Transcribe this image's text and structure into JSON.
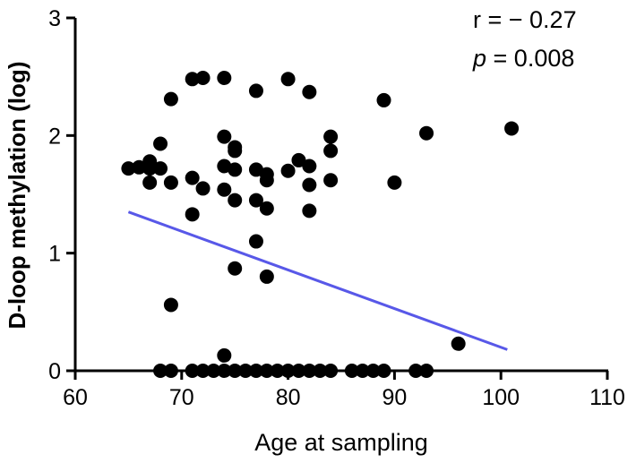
{
  "chart_data": {
    "type": "scatter",
    "xlabel": "Age at sampling",
    "ylabel": "D-loop methylation (log)",
    "xlim": [
      60,
      110
    ],
    "ylim": [
      0,
      3
    ],
    "xticks": [
      60,
      70,
      80,
      90,
      100,
      110
    ],
    "yticks": [
      0,
      1,
      2,
      3
    ],
    "annotations": {
      "r_text": "r = − 0.27",
      "p_symbol": "p",
      "p_rest": " = 0.008"
    },
    "colors": {
      "points": "#000000",
      "regression_line": "#5858e8",
      "axis": "#000000"
    },
    "regression_line": {
      "x": [
        65,
        100.6
      ],
      "y": [
        1.35,
        0.18
      ]
    },
    "points": [
      {
        "x": 65,
        "y": 1.72
      },
      {
        "x": 66,
        "y": 1.73
      },
      {
        "x": 67,
        "y": 1.78
      },
      {
        "x": 67,
        "y": 1.72
      },
      {
        "x": 67,
        "y": 1.6
      },
      {
        "x": 68,
        "y": 1.72
      },
      {
        "x": 68,
        "y": 1.93
      },
      {
        "x": 69,
        "y": 2.31
      },
      {
        "x": 69,
        "y": 1.6
      },
      {
        "x": 69,
        "y": 0.56
      },
      {
        "x": 71,
        "y": 2.48
      },
      {
        "x": 72,
        "y": 2.49
      },
      {
        "x": 74,
        "y": 2.49
      },
      {
        "x": 71,
        "y": 1.64
      },
      {
        "x": 72,
        "y": 1.55
      },
      {
        "x": 71,
        "y": 1.33
      },
      {
        "x": 74,
        "y": 1.99
      },
      {
        "x": 74,
        "y": 1.74
      },
      {
        "x": 74,
        "y": 1.54
      },
      {
        "x": 75,
        "y": 1.9
      },
      {
        "x": 75,
        "y": 1.87
      },
      {
        "x": 75,
        "y": 1.71
      },
      {
        "x": 75,
        "y": 1.45
      },
      {
        "x": 75,
        "y": 0.87
      },
      {
        "x": 77,
        "y": 2.38
      },
      {
        "x": 77,
        "y": 1.71
      },
      {
        "x": 77,
        "y": 1.45
      },
      {
        "x": 77,
        "y": 1.1
      },
      {
        "x": 78,
        "y": 1.67
      },
      {
        "x": 78,
        "y": 1.62
      },
      {
        "x": 78,
        "y": 1.38
      },
      {
        "x": 78,
        "y": 0.8
      },
      {
        "x": 80,
        "y": 2.48
      },
      {
        "x": 80,
        "y": 1.7
      },
      {
        "x": 81,
        "y": 1.79
      },
      {
        "x": 82,
        "y": 2.37
      },
      {
        "x": 82,
        "y": 1.74
      },
      {
        "x": 82,
        "y": 1.58
      },
      {
        "x": 82,
        "y": 1.36
      },
      {
        "x": 84,
        "y": 1.99
      },
      {
        "x": 84,
        "y": 1.87
      },
      {
        "x": 84,
        "y": 1.62
      },
      {
        "x": 89,
        "y": 2.3
      },
      {
        "x": 90,
        "y": 1.6
      },
      {
        "x": 93,
        "y": 2.02
      },
      {
        "x": 101,
        "y": 2.06
      },
      {
        "x": 96,
        "y": 0.23
      },
      {
        "x": 74,
        "y": 0.13
      },
      {
        "x": 68,
        "y": 0
      },
      {
        "x": 69,
        "y": 0
      },
      {
        "x": 71,
        "y": 0
      },
      {
        "x": 72,
        "y": 0
      },
      {
        "x": 73,
        "y": 0
      },
      {
        "x": 74,
        "y": 0
      },
      {
        "x": 75,
        "y": 0
      },
      {
        "x": 76,
        "y": 0
      },
      {
        "x": 77,
        "y": 0
      },
      {
        "x": 78,
        "y": 0
      },
      {
        "x": 79,
        "y": 0
      },
      {
        "x": 80,
        "y": 0
      },
      {
        "x": 81,
        "y": 0
      },
      {
        "x": 82,
        "y": 0
      },
      {
        "x": 83,
        "y": 0
      },
      {
        "x": 84,
        "y": 0
      },
      {
        "x": 86,
        "y": 0
      },
      {
        "x": 87,
        "y": 0
      },
      {
        "x": 88,
        "y": 0
      },
      {
        "x": 89,
        "y": 0
      },
      {
        "x": 92,
        "y": 0
      },
      {
        "x": 93,
        "y": 0
      }
    ]
  }
}
